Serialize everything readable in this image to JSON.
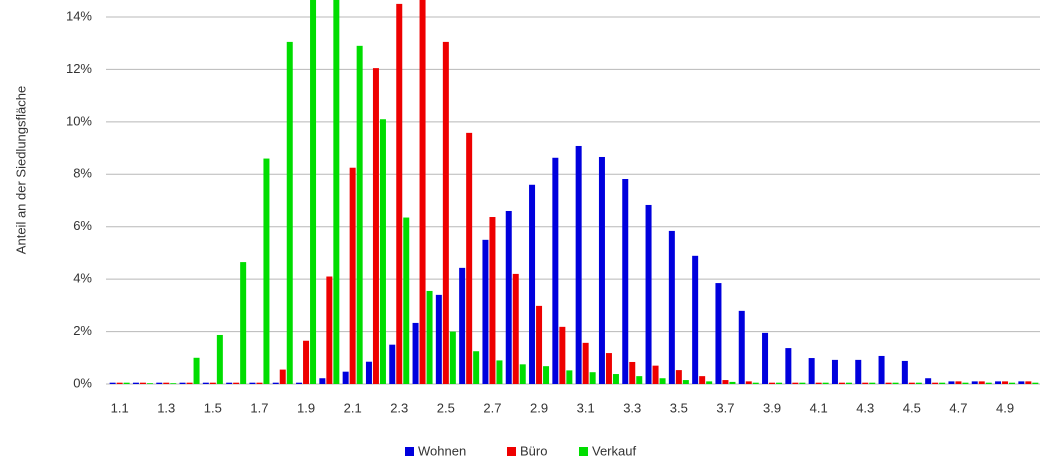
{
  "chart_data": {
    "type": "bar",
    "y_label": "Anteil an der Siedlungsfläche",
    "categories": [
      "1.1",
      null,
      "1.3",
      null,
      "1.5",
      null,
      "1.7",
      null,
      "1.9",
      null,
      "2.1",
      null,
      "2.3",
      null,
      "2.5",
      null,
      "2.7",
      null,
      "2.9",
      null,
      "3.1",
      null,
      "3.3",
      null,
      "3.5",
      null,
      "3.7",
      null,
      "3.9",
      null,
      "4.1",
      null,
      "4.3",
      null,
      "4.5",
      null,
      "4.7",
      null,
      "4.9",
      null
    ],
    "series": [
      {
        "name": "Wohnen",
        "color": "#0000dd",
        "values": [
          0.05,
          0.05,
          0.05,
          0.05,
          0.05,
          0.05,
          0.05,
          0.05,
          0.05,
          0.22,
          0.47,
          0.85,
          1.5,
          2.33,
          3.4,
          4.43,
          5.5,
          6.6,
          7.6,
          8.63,
          9.08,
          8.66,
          7.82,
          6.83,
          5.84,
          4.89,
          3.85,
          2.79,
          1.95,
          1.37,
          0.99,
          0.92,
          0.92,
          1.07,
          0.88,
          0.22,
          0.1,
          0.1,
          0.1,
          0.1
        ]
      },
      {
        "name": "Büro",
        "color": "#ee0000",
        "values": [
          0.05,
          0.05,
          0.05,
          0.05,
          0.05,
          0.05,
          0.05,
          0.55,
          1.65,
          4.1,
          8.25,
          12.05,
          14.5,
          15,
          13.05,
          9.58,
          6.37,
          4.2,
          2.98,
          2.18,
          1.57,
          1.18,
          0.84,
          0.7,
          0.53,
          0.3,
          0.15,
          0.1,
          0.05,
          0.05,
          0.05,
          0.05,
          0.05,
          0.05,
          0.05,
          0.05,
          0.1,
          0.1,
          0.1,
          0.1
        ]
      },
      {
        "name": "Verkauf",
        "color": "#00dd00",
        "values": [
          0.05,
          0.03,
          0.03,
          1.0,
          1.87,
          4.65,
          8.6,
          13.05,
          15,
          15,
          12.9,
          10.1,
          6.35,
          3.55,
          2.0,
          1.25,
          0.9,
          0.75,
          0.68,
          0.52,
          0.45,
          0.38,
          0.3,
          0.22,
          0.15,
          0.1,
          0.08,
          0.05,
          0.05,
          0.05,
          0.05,
          0.05,
          0.05,
          0.05,
          0.05,
          0.05,
          0.05,
          0.05,
          0.05,
          0.05
        ]
      }
    ],
    "ylim": [
      0,
      14
    ],
    "yticks": [
      {
        "value": 0,
        "label": "0%"
      },
      {
        "value": 2,
        "label": "2%"
      },
      {
        "value": 4,
        "label": "4%"
      },
      {
        "value": 6,
        "label": "6%"
      },
      {
        "value": 8,
        "label": "8%"
      },
      {
        "value": 10,
        "label": "10%"
      },
      {
        "value": 12,
        "label": "12%"
      },
      {
        "value": 14,
        "label": "14%"
      }
    ],
    "grid": true,
    "legend": "bottom"
  }
}
